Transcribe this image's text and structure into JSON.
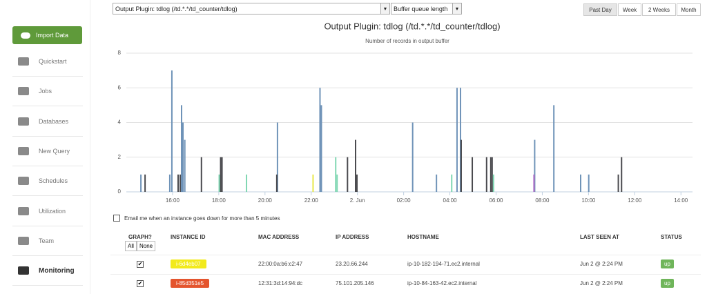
{
  "sidebar": {
    "import_button": "Import Data",
    "items": [
      "Quickstart",
      "Jobs",
      "Databases",
      "New Query",
      "Schedules",
      "Utilization",
      "Team",
      "Monitoring"
    ]
  },
  "controls": {
    "plugin_select": "Output Plugin: tdlog (/td.*.*/td_counter/tdlog)",
    "metric_select": "Buffer queue length",
    "ranges": [
      "Past Day",
      "Week",
      "2 Weeks",
      "Month"
    ]
  },
  "chart_data": {
    "type": "bar",
    "title": "Output Plugin: tdlog (/td.*.*/td_counter/tdlog)",
    "subtitle": "Number of records in output buffer",
    "xlim": [
      14,
      38.5
    ],
    "ylim": [
      0,
      8
    ],
    "yticks": [
      0,
      2,
      4,
      6,
      8
    ],
    "grid": true,
    "xticks": [
      {
        "value": 16,
        "label": "16:00"
      },
      {
        "value": 18,
        "label": "18:00"
      },
      {
        "value": 20,
        "label": "20:00"
      },
      {
        "value": 22,
        "label": "22:00"
      },
      {
        "value": 24,
        "label": "2. Jun"
      },
      {
        "value": 26,
        "label": "02:00"
      },
      {
        "value": 28,
        "label": "04:00"
      },
      {
        "value": 30,
        "label": "06:00"
      },
      {
        "value": 32,
        "label": "08:00"
      },
      {
        "value": 34,
        "label": "10:00"
      },
      {
        "value": 36,
        "label": "12:00"
      },
      {
        "value": 38,
        "label": "14:00"
      }
    ],
    "series": [
      {
        "color": "#6f93b8",
        "x": [
          14.63,
          15.88,
          15.97,
          16.39,
          16.45,
          16.53,
          20.54,
          22.38,
          22.44,
          26.39,
          27.42,
          28.31,
          28.46,
          31.67,
          32.5,
          33.66,
          34.01
        ],
        "values": [
          1,
          1,
          7,
          5,
          4,
          3,
          4,
          6,
          5,
          4,
          1,
          6,
          6,
          3,
          5,
          1,
          1
        ]
      },
      {
        "color": "#4a4a4e",
        "x": [
          14.81,
          16.24,
          16.33,
          17.25,
          18.08,
          18.14,
          20.51,
          23.57,
          23.92,
          23.98,
          28.49,
          28.97,
          29.59,
          29.77,
          29.83,
          35.29,
          35.43
        ],
        "values": [
          1,
          1,
          1,
          2,
          2,
          2,
          1,
          2,
          3,
          1,
          3,
          2,
          2,
          2,
          2,
          1,
          2
        ]
      },
      {
        "color": "#7fd6b2",
        "x": [
          18.02,
          19.2,
          23.06,
          23.12,
          28.08,
          29.89
        ],
        "values": [
          1,
          1,
          2,
          1,
          1,
          1
        ]
      },
      {
        "color": "#e8e84a",
        "x": [
          22.08
        ],
        "values": [
          1
        ]
      },
      {
        "color": "#b06cc8",
        "x": [
          31.64
        ],
        "values": [
          1
        ]
      }
    ]
  },
  "email_option": "Email me when an instance goes down for more than 5 minutes",
  "table": {
    "headers": [
      "GRAPH?",
      "INSTANCE ID",
      "MAC ADDRESS",
      "IP ADDRESS",
      "HOSTNAME",
      "LAST SEEN AT",
      "STATUS"
    ],
    "select_buttons": [
      "All",
      "None"
    ],
    "rows": [
      [
        "i-6d4eb07",
        "22:00:0a:b6:c2:47",
        "23.20.66.244",
        "ip-10-182-194-71.ec2.internal",
        "Jun 2 @ 2:24 PM",
        "up"
      ],
      [
        "i-85d351e5",
        "12:31:3d:14:94:dc",
        "75.101.205.146",
        "ip-10-84-163-42.ec2.internal",
        "Jun 2 @ 2:24 PM",
        "up"
      ]
    ]
  }
}
